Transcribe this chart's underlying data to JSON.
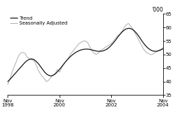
{
  "ylabel": "'000",
  "ylim": [
    35,
    65
  ],
  "yticks": [
    35,
    40,
    45,
    50,
    55,
    60,
    65
  ],
  "xtick_positions": [
    0,
    24,
    48,
    72
  ],
  "xtick_labels": [
    "Nov\n1998",
    "Nov\n2000",
    "Nov\n2002",
    "Nov\n2004"
  ],
  "trend_color": "#111111",
  "sa_color": "#b0b0b0",
  "legend_entries": [
    "Trend",
    "Seasonally Adjusted"
  ],
  "background_color": "#ffffff",
  "trend": [
    40.0,
    40.8,
    41.7,
    42.6,
    43.5,
    44.4,
    45.3,
    46.2,
    47.1,
    47.8,
    48.2,
    48.4,
    48.2,
    47.6,
    46.8,
    45.8,
    44.7,
    43.6,
    42.8,
    42.3,
    42.1,
    42.3,
    42.8,
    43.6,
    44.5,
    45.5,
    46.5,
    47.5,
    48.4,
    49.2,
    49.9,
    50.5,
    51.0,
    51.4,
    51.7,
    51.9,
    52.0,
    52.0,
    51.9,
    51.7,
    51.5,
    51.3,
    51.2,
    51.2,
    51.3,
    51.6,
    52.0,
    52.6,
    53.4,
    54.3,
    55.3,
    56.4,
    57.4,
    58.3,
    59.0,
    59.5,
    59.7,
    59.6,
    59.2,
    58.5,
    57.6,
    56.5,
    55.3,
    54.2,
    53.2,
    52.4,
    51.8,
    51.4,
    51.2,
    51.2,
    51.4,
    51.7,
    52.1
  ],
  "sa": [
    39.0,
    41.0,
    43.5,
    45.5,
    47.5,
    49.5,
    50.5,
    50.8,
    50.5,
    49.0,
    48.5,
    48.0,
    48.0,
    46.5,
    44.5,
    43.0,
    42.0,
    41.0,
    40.0,
    40.5,
    41.5,
    42.5,
    43.0,
    44.5,
    43.5,
    45.0,
    46.5,
    47.5,
    48.5,
    50.0,
    51.0,
    52.0,
    53.0,
    54.0,
    54.5,
    55.0,
    55.0,
    54.5,
    53.0,
    51.5,
    50.5,
    50.0,
    50.5,
    51.5,
    52.0,
    52.5,
    53.0,
    53.5,
    54.0,
    55.0,
    56.0,
    57.0,
    57.5,
    58.5,
    60.0,
    61.0,
    61.5,
    60.5,
    59.5,
    58.0,
    56.5,
    55.0,
    53.5,
    52.0,
    51.0,
    50.5,
    50.0,
    50.0,
    50.5,
    51.0,
    51.5,
    52.0,
    52.5
  ]
}
